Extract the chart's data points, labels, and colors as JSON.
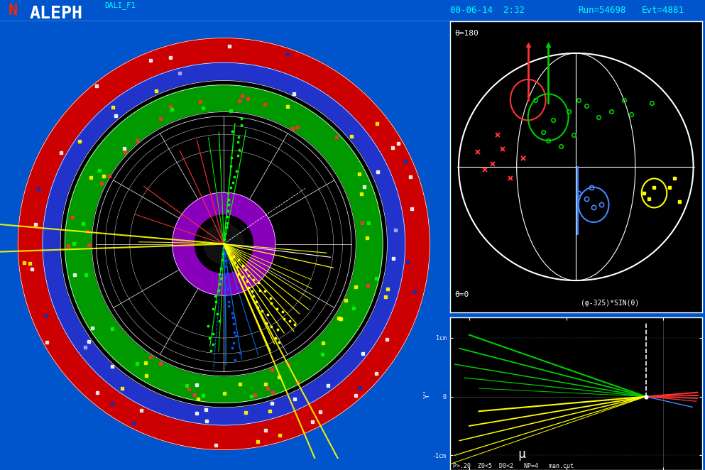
{
  "bg_color": "#0055cc",
  "header_text": "ALEPH",
  "sub_header": "DALI_F1",
  "run_info": "Run=54698    Evt=4881",
  "date_info": "00-06-14  2:32",
  "detector_colors": {
    "outermost": "#cc0000",
    "outer_ring": "#0000cc",
    "ecal": "#00aa00",
    "tpc_outer": "#000000",
    "inner_ring": "#7700aa",
    "center": "#000000"
  },
  "track_colors": [
    "#00ff00",
    "#ffff00",
    "#ff0000",
    "#0088ff",
    "#ff8800",
    "#ffffff"
  ],
  "title_color": "#ffffff",
  "panel_bg": "#000000"
}
